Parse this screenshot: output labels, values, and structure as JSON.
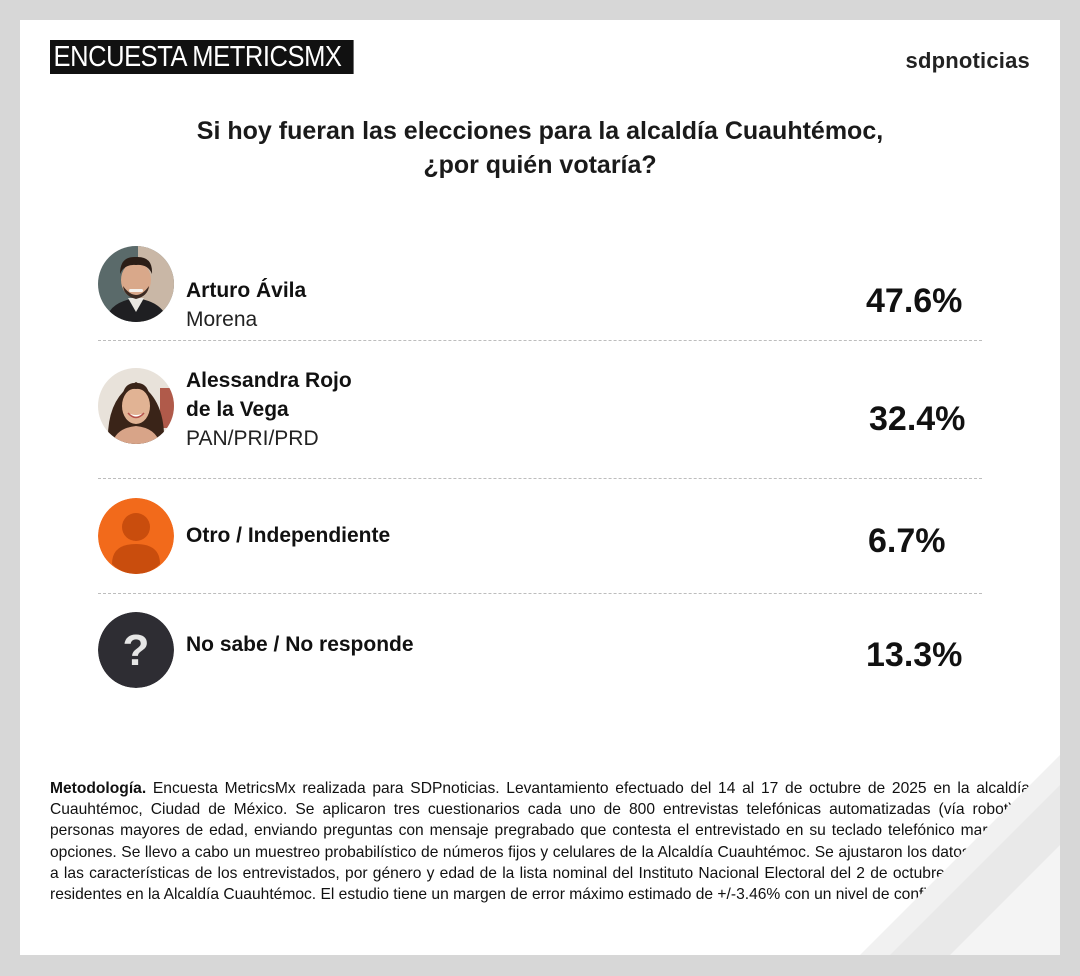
{
  "header": {
    "brand_label": "ENCUESTA METRICSMX",
    "logo_text": "sdpnoticias"
  },
  "title_line1": "Si hoy fueran las elecciones para la alcaldía Cuauhtémoc,",
  "title_line2": "¿por quién votaría?",
  "chart_data": {
    "type": "table",
    "rows": [
      {
        "name_line1": "Arturo Ávila",
        "name_line2": "",
        "party": "Morena",
        "value": 47.6,
        "label": "47.6%",
        "avatar": "person-photo-icon"
      },
      {
        "name_line1": "Alessandra Rojo",
        "name_line2": "de la Vega",
        "party": "PAN/PRI/PRD",
        "value": 32.4,
        "label": "32.4%",
        "avatar": "person-photo-icon"
      },
      {
        "name_line1": "Otro / Independiente",
        "name_line2": "",
        "party": "",
        "value": 6.7,
        "label": "6.7%",
        "avatar": "person-silhouette-icon"
      },
      {
        "name_line1": "No sabe / No responde",
        "name_line2": "",
        "party": "",
        "value": 13.3,
        "label": "13.3%",
        "avatar": "question-mark-icon"
      }
    ]
  },
  "methodology": {
    "label": "Metodología.",
    "text": " Encuesta MetricsMx realizada para SDPnoticias. Levantamiento efectuado del 14 al 17 de octubre de 2025 en la alcaldía Cuauhtémoc, Ciudad de México. Se aplicaron tres cuestionarios cada uno de 800 entrevistas telefónicas automatizadas (vía robot) a personas mayores de edad, enviando preguntas con mensaje pregrabado que contesta el entrevistado en su teclado telefónico marcando opciones. Se llevo a cabo un muestreo probabilístico de números fijos y celulares de la Alcaldía Cuauhtémoc. Se ajustaron los datos en base a las características de los entrevistados, por género y edad de la lista nominal del Instituto Nacional Electoral del 2 de octubre de 2025 de residentes en la Alcaldía Cuauhtémoc. El estudio tiene un margen de error máximo estimado de +/-3.46% con un nivel de confianza del 95%"
  },
  "colors": {
    "orange_icon": "#f26a1b",
    "dark_icon": "#2e2d33",
    "text": "#111111"
  }
}
